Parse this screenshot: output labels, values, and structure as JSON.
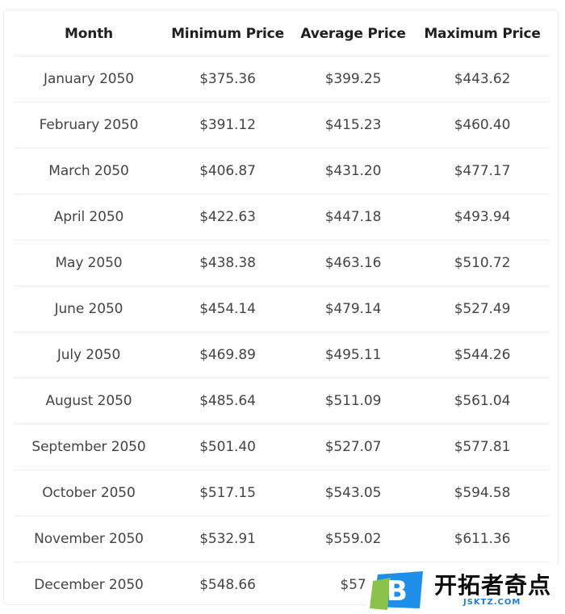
{
  "table": {
    "headers": [
      "Month",
      "Minimum Price",
      "Average Price",
      "Maximum Price"
    ],
    "rows": [
      [
        "January 2050",
        "$375.36",
        "$399.25",
        "$443.62"
      ],
      [
        "February 2050",
        "$391.12",
        "$415.23",
        "$460.40"
      ],
      [
        "March 2050",
        "$406.87",
        "$431.20",
        "$477.17"
      ],
      [
        "April 2050",
        "$422.63",
        "$447.18",
        "$493.94"
      ],
      [
        "May 2050",
        "$438.38",
        "$463.16",
        "$510.72"
      ],
      [
        "June 2050",
        "$454.14",
        "$479.14",
        "$527.49"
      ],
      [
        "July 2050",
        "$469.89",
        "$495.11",
        "$544.26"
      ],
      [
        "August 2050",
        "$485.64",
        "$511.09",
        "$561.04"
      ],
      [
        "September 2050",
        "$501.40",
        "$527.07",
        "$577.81"
      ],
      [
        "October 2050",
        "$517.15",
        "$543.05",
        "$594.58"
      ],
      [
        "November 2050",
        "$532.91",
        "$559.02",
        "$611.36"
      ],
      [
        "December 2050",
        "$548.66",
        "$57",
        ""
      ]
    ]
  },
  "watermark": {
    "logo_letter": "B",
    "brand_text": "开拓者奇点",
    "url": "JSKTZ.COM",
    "logo_color": "#1f8ee8",
    "logo_accent": "#8bc34a"
  }
}
